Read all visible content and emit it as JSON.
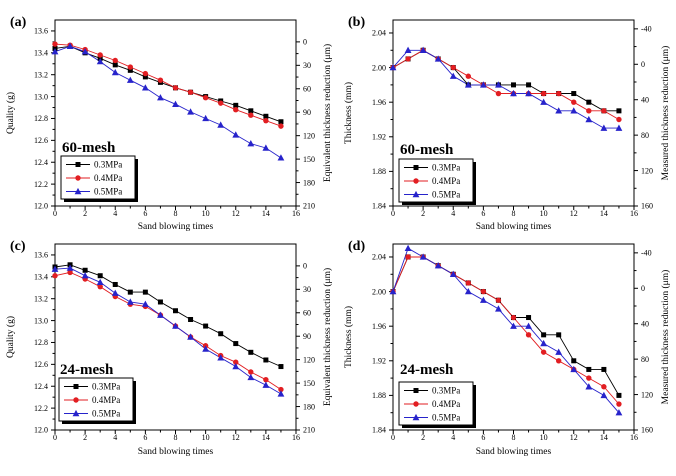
{
  "figure": {
    "background": "#ffffff",
    "description_labels": [
      "(a)",
      "(b)",
      "(c)",
      "(d)"
    ]
  },
  "colors": {
    "series_03MPa": "#000000",
    "series_04MPa": "#e21e22",
    "series_05MPa": "#2723cb",
    "mesh_label": "#cc2028",
    "axis": "#000000",
    "legend_border": "#000000",
    "legend_shadow": "#000000",
    "legend_background": "#ffffff"
  },
  "chart_data": [
    {
      "type": "line",
      "panel_letter": "(a)",
      "mesh_label": "60-mesh",
      "xlabel": "Sand blowing times",
      "ylabel": "Quality (g)",
      "y2label": "Equivalent thickness reduction (μm)",
      "xlim": [
        0,
        16
      ],
      "ylim": [
        12.0,
        13.7
      ],
      "y2lim_top": -28,
      "y2lim_bottom": 210,
      "xticks": [
        0,
        2,
        4,
        6,
        8,
        10,
        12,
        14,
        16
      ],
      "xtick_labels": [
        "0",
        "2",
        "4",
        "6",
        "8",
        "10",
        "12",
        "14",
        "16"
      ],
      "yticks": [
        12.0,
        12.2,
        12.4,
        12.6,
        12.8,
        13.0,
        13.2,
        13.4,
        13.6
      ],
      "ytick_labels": [
        "12.0",
        "12.2",
        "12.4",
        "12.6",
        "12.8",
        "13.0",
        "13.2",
        "13.4",
        "13.6"
      ],
      "y2ticks": [
        0,
        30,
        60,
        90,
        120,
        150,
        180,
        210
      ],
      "y2tick_labels": [
        "0",
        "30",
        "60",
        "90",
        "120",
        "150",
        "180",
        "210"
      ],
      "x": [
        0,
        1,
        2,
        3,
        4,
        5,
        6,
        7,
        8,
        9,
        10,
        11,
        12,
        13,
        14,
        15
      ],
      "series": [
        {
          "name": "0.3MPa",
          "marker": "square",
          "color": "#000000",
          "values": [
            13.44,
            13.46,
            13.4,
            13.35,
            13.29,
            13.24,
            13.18,
            13.13,
            13.08,
            13.04,
            13.0,
            12.96,
            12.92,
            12.87,
            12.82,
            12.77
          ]
        },
        {
          "name": "0.4MPa",
          "marker": "circle",
          "color": "#e21e22",
          "values": [
            13.48,
            13.47,
            13.43,
            13.38,
            13.33,
            13.27,
            13.21,
            13.15,
            13.08,
            13.04,
            12.99,
            12.94,
            12.88,
            12.83,
            12.78,
            12.73
          ]
        },
        {
          "name": "0.5MPa",
          "marker": "triangle",
          "color": "#2723cb",
          "values": [
            13.41,
            13.46,
            13.41,
            13.32,
            13.22,
            13.15,
            13.08,
            12.99,
            12.93,
            12.86,
            12.8,
            12.74,
            12.65,
            12.57,
            12.53,
            12.44
          ]
        }
      ],
      "legend_position": {
        "x": 61,
        "y": 156
      },
      "mesh_label_position": {
        "x": 62,
        "y": 152
      },
      "grid": false,
      "legend_location": "lower-left-inside"
    },
    {
      "type": "line",
      "panel_letter": "(b)",
      "mesh_label": "60-mesh",
      "xlabel": "Sand blowing times",
      "ylabel": "Thickness (mm)",
      "y2label": "Measured thickness reduction (μm)",
      "xlim": [
        0,
        16
      ],
      "ylim": [
        1.84,
        2.055
      ],
      "y2lim_top": -50,
      "y2lim_bottom": 160,
      "xticks": [
        0,
        2,
        4,
        6,
        8,
        10,
        12,
        14,
        16
      ],
      "xtick_labels": [
        "0",
        "2",
        "4",
        "6",
        "8",
        "10",
        "12",
        "14",
        "16"
      ],
      "yticks": [
        1.84,
        1.88,
        1.92,
        1.96,
        2.0,
        2.04
      ],
      "ytick_labels": [
        "1.84",
        "1.88",
        "1.92",
        "1.96",
        "2.00",
        "2.04"
      ],
      "y2ticks": [
        -40,
        0,
        40,
        80,
        120,
        160
      ],
      "y2tick_labels": [
        "-40",
        "0",
        "40",
        "80",
        "120",
        "160"
      ],
      "x": [
        0,
        1,
        2,
        3,
        4,
        5,
        6,
        7,
        8,
        9,
        10,
        11,
        12,
        13,
        14,
        15
      ],
      "series": [
        {
          "name": "0.3MPa",
          "marker": "square",
          "color": "#000000",
          "values": [
            2.0,
            2.01,
            2.02,
            2.01,
            2.0,
            1.98,
            1.98,
            1.98,
            1.98,
            1.98,
            1.97,
            1.97,
            1.97,
            1.96,
            1.95,
            1.95
          ]
        },
        {
          "name": "0.4MPa",
          "marker": "circle",
          "color": "#e21e22",
          "values": [
            2.0,
            2.01,
            2.02,
            2.01,
            2.0,
            1.99,
            1.98,
            1.97,
            1.97,
            1.97,
            1.97,
            1.97,
            1.96,
            1.95,
            1.95,
            1.94
          ]
        },
        {
          "name": "0.5MPa",
          "marker": "triangle",
          "color": "#2723cb",
          "values": [
            2.0,
            2.02,
            2.02,
            2.01,
            1.99,
            1.98,
            1.98,
            1.98,
            1.97,
            1.97,
            1.96,
            1.95,
            1.95,
            1.94,
            1.93,
            1.93
          ]
        }
      ],
      "legend_position": {
        "x": 61,
        "y": 159
      },
      "mesh_label_position": {
        "x": 62,
        "y": 154
      },
      "grid": false,
      "legend_location": "lower-left-inside"
    },
    {
      "type": "line",
      "panel_letter": "(c)",
      "mesh_label": "24-mesh",
      "xlabel": "Sand blowing times",
      "ylabel": "Quality (g)",
      "y2label": "Equivalent thickness reduction (μm)",
      "xlim": [
        0,
        16
      ],
      "ylim": [
        12.0,
        13.7
      ],
      "y2lim_top": -28,
      "y2lim_bottom": 210,
      "xticks": [
        0,
        2,
        4,
        6,
        8,
        10,
        12,
        14,
        16
      ],
      "xtick_labels": [
        "0",
        "2",
        "4",
        "6",
        "8",
        "10",
        "12",
        "14",
        "16"
      ],
      "yticks": [
        12.0,
        12.2,
        12.4,
        12.6,
        12.8,
        13.0,
        13.2,
        13.4,
        13.6
      ],
      "ytick_labels": [
        "12.0",
        "12.2",
        "12.4",
        "12.6",
        "12.8",
        "13.0",
        "13.2",
        "13.4",
        "13.6"
      ],
      "y2ticks": [
        0,
        30,
        60,
        90,
        120,
        150,
        180,
        210
      ],
      "y2tick_labels": [
        "0",
        "30",
        "60",
        "90",
        "120",
        "150",
        "180",
        "210"
      ],
      "x": [
        0,
        1,
        2,
        3,
        4,
        5,
        6,
        7,
        8,
        9,
        10,
        11,
        12,
        13,
        14,
        15
      ],
      "series": [
        {
          "name": "0.3MPa",
          "marker": "square",
          "color": "#000000",
          "values": [
            13.49,
            13.51,
            13.46,
            13.41,
            13.33,
            13.26,
            13.26,
            13.17,
            13.09,
            13.01,
            12.95,
            12.88,
            12.79,
            12.71,
            12.64,
            12.58
          ]
        },
        {
          "name": "0.4MPa",
          "marker": "circle",
          "color": "#e21e22",
          "values": [
            13.41,
            13.44,
            13.38,
            13.31,
            13.22,
            13.15,
            13.13,
            13.05,
            12.95,
            12.85,
            12.77,
            12.68,
            12.62,
            12.53,
            12.46,
            12.37
          ]
        },
        {
          "name": "0.5MPa",
          "marker": "triangle",
          "color": "#2723cb",
          "values": [
            13.47,
            13.48,
            13.41,
            13.35,
            13.25,
            13.17,
            13.15,
            13.05,
            12.95,
            12.85,
            12.74,
            12.66,
            12.58,
            12.48,
            12.41,
            12.33
          ]
        }
      ],
      "legend_position": {
        "x": 59,
        "y": 143
      },
      "mesh_label_position": {
        "x": 60,
        "y": 139
      },
      "grid": false,
      "legend_location": "lower-left-inside"
    },
    {
      "type": "line",
      "panel_letter": "(d)",
      "mesh_label": "24-mesh",
      "xlabel": "Sand blowing times",
      "ylabel": "Thickness (mm)",
      "y2label": "Measured thickness reduction (μm)",
      "xlim": [
        0,
        16
      ],
      "ylim": [
        1.84,
        2.055
      ],
      "y2lim_top": -50,
      "y2lim_bottom": 160,
      "xticks": [
        0,
        2,
        4,
        6,
        8,
        10,
        12,
        14,
        16
      ],
      "xtick_labels": [
        "0",
        "2",
        "4",
        "6",
        "8",
        "10",
        "12",
        "14",
        "16"
      ],
      "yticks": [
        1.84,
        1.88,
        1.92,
        1.96,
        2.0,
        2.04
      ],
      "ytick_labels": [
        "1.84",
        "1.88",
        "1.92",
        "1.96",
        "2.00",
        "2.04"
      ],
      "y2ticks": [
        -40,
        0,
        40,
        80,
        120,
        160
      ],
      "y2tick_labels": [
        "-40",
        "0",
        "40",
        "80",
        "120",
        "160"
      ],
      "x": [
        0,
        1,
        2,
        3,
        4,
        5,
        6,
        7,
        8,
        9,
        10,
        11,
        12,
        13,
        14,
        15
      ],
      "series": [
        {
          "name": "0.3MPa",
          "marker": "square",
          "color": "#000000",
          "values": [
            2.0,
            2.04,
            2.04,
            2.03,
            2.02,
            2.01,
            2.0,
            1.99,
            1.97,
            1.97,
            1.95,
            1.95,
            1.92,
            1.91,
            1.91,
            1.88
          ]
        },
        {
          "name": "0.4MPa",
          "marker": "circle",
          "color": "#e21e22",
          "values": [
            2.0,
            2.04,
            2.04,
            2.03,
            2.02,
            2.01,
            2.0,
            1.99,
            1.97,
            1.95,
            1.93,
            1.92,
            1.91,
            1.9,
            1.89,
            1.87
          ]
        },
        {
          "name": "0.5MPa",
          "marker": "triangle",
          "color": "#2723cb",
          "values": [
            2.0,
            2.05,
            2.04,
            2.03,
            2.02,
            2.0,
            1.99,
            1.98,
            1.96,
            1.96,
            1.94,
            1.93,
            1.91,
            1.89,
            1.88,
            1.86
          ]
        }
      ],
      "legend_position": {
        "x": 61,
        "y": 147
      },
      "mesh_label_position": {
        "x": 62,
        "y": 139
      },
      "grid": false,
      "legend_location": "lower-left-inside"
    }
  ]
}
